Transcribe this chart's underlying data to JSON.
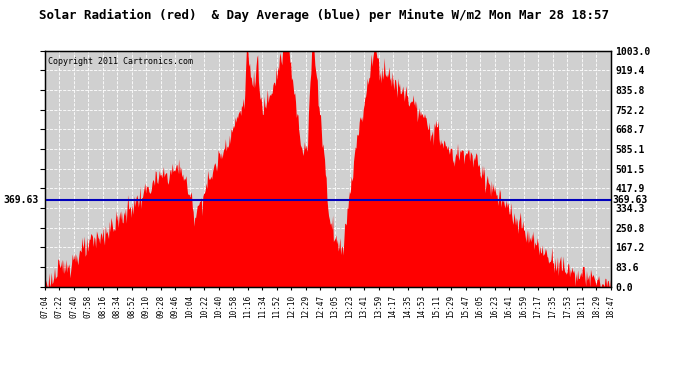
{
  "title": "Solar Radiation (red)  & Day Average (blue) per Minute W/m2 Mon Mar 28 18:57",
  "copyright": "Copyright 2011 Cartronics.com",
  "avg_line_value": 369.63,
  "avg_line_label": "369.63",
  "ymax": 1003.0,
  "ymin": 0.0,
  "yticks": [
    0.0,
    83.6,
    167.2,
    250.8,
    334.3,
    417.9,
    501.5,
    585.1,
    668.7,
    752.2,
    835.8,
    919.4,
    1003.0
  ],
  "ytick_labels": [
    "0.0",
    "83.6",
    "167.2",
    "250.8",
    "334.3",
    "417.9",
    "501.5",
    "585.1",
    "668.7",
    "752.2",
    "835.8",
    "919.4",
    "1003.0"
  ],
  "bg_color": "#ffffff",
  "fill_color": "#ff0000",
  "line_color": "#0000bb",
  "grid_color": "#ffffff",
  "plot_bg_color": "#d0d0d0",
  "title_fontsize": 10,
  "copyright_fontsize": 7,
  "xtick_labels": [
    "07:04",
    "07:22",
    "07:40",
    "07:58",
    "08:16",
    "08:34",
    "08:52",
    "09:10",
    "09:28",
    "09:46",
    "10:04",
    "10:22",
    "10:40",
    "10:58",
    "11:16",
    "11:34",
    "11:52",
    "12:10",
    "12:29",
    "12:47",
    "13:05",
    "13:23",
    "13:41",
    "13:59",
    "14:17",
    "14:35",
    "14:53",
    "15:11",
    "15:29",
    "15:47",
    "16:05",
    "16:23",
    "16:41",
    "16:59",
    "17:17",
    "17:35",
    "17:53",
    "18:11",
    "18:29",
    "18:47"
  ]
}
